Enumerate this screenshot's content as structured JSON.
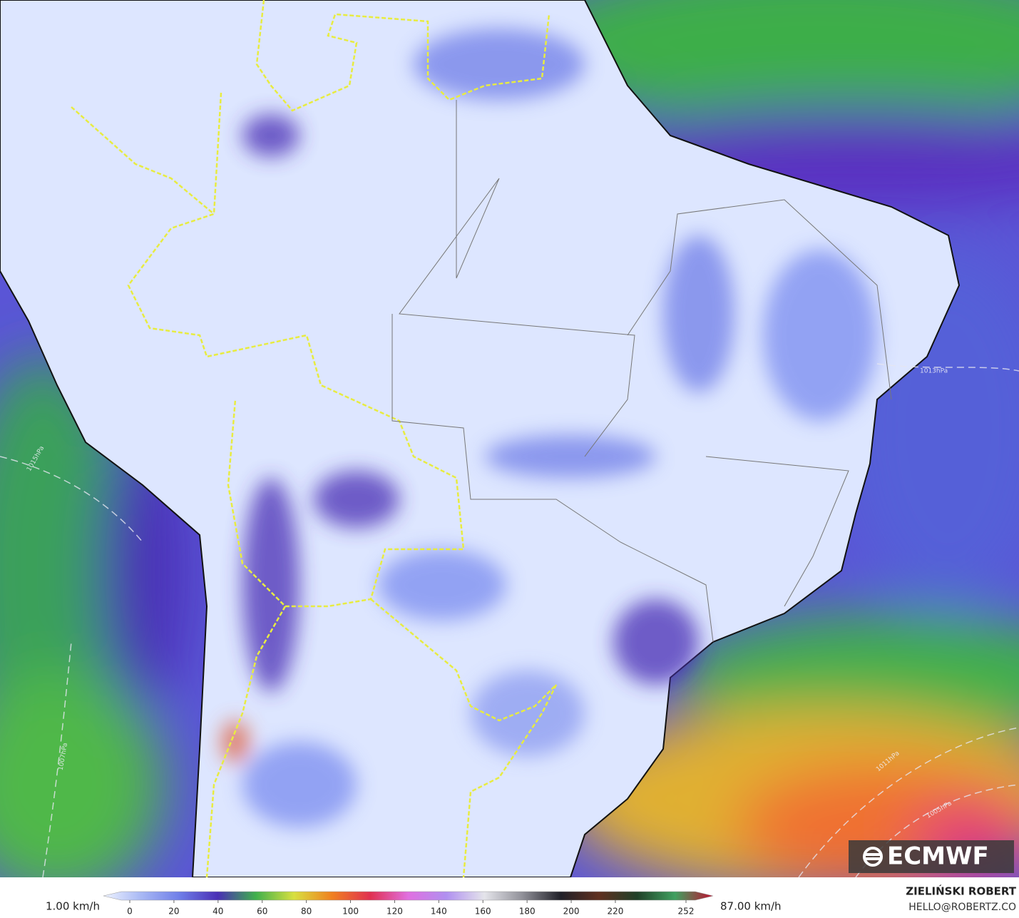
{
  "colorbar": {
    "min_label": "1.00 km/h",
    "max_label": "87.00 km/h",
    "range": [
      0,
      252
    ],
    "ticks": [
      0,
      20,
      40,
      60,
      80,
      100,
      120,
      140,
      160,
      180,
      200,
      220,
      252
    ],
    "colors": [
      "#eef3ff",
      "#a8b8f4",
      "#6f7ee8",
      "#4a2fb5",
      "#3fb04c",
      "#d8e040",
      "#f08020",
      "#e03050",
      "#e070e0",
      "#b090f0",
      "#e4e4ea",
      "#909098",
      "#202028",
      "#603020",
      "#204028",
      "#40a060",
      "#c01030"
    ]
  },
  "credit": {
    "name": "ZIELIŃSKI ROBERT",
    "email": "HELLO@ROBERTZ.CO"
  },
  "logo": "ECMWF",
  "isobars": [
    "1015hPa",
    "1013hPa",
    "1011hPa",
    "1007hPa",
    "1005hPa"
  ]
}
